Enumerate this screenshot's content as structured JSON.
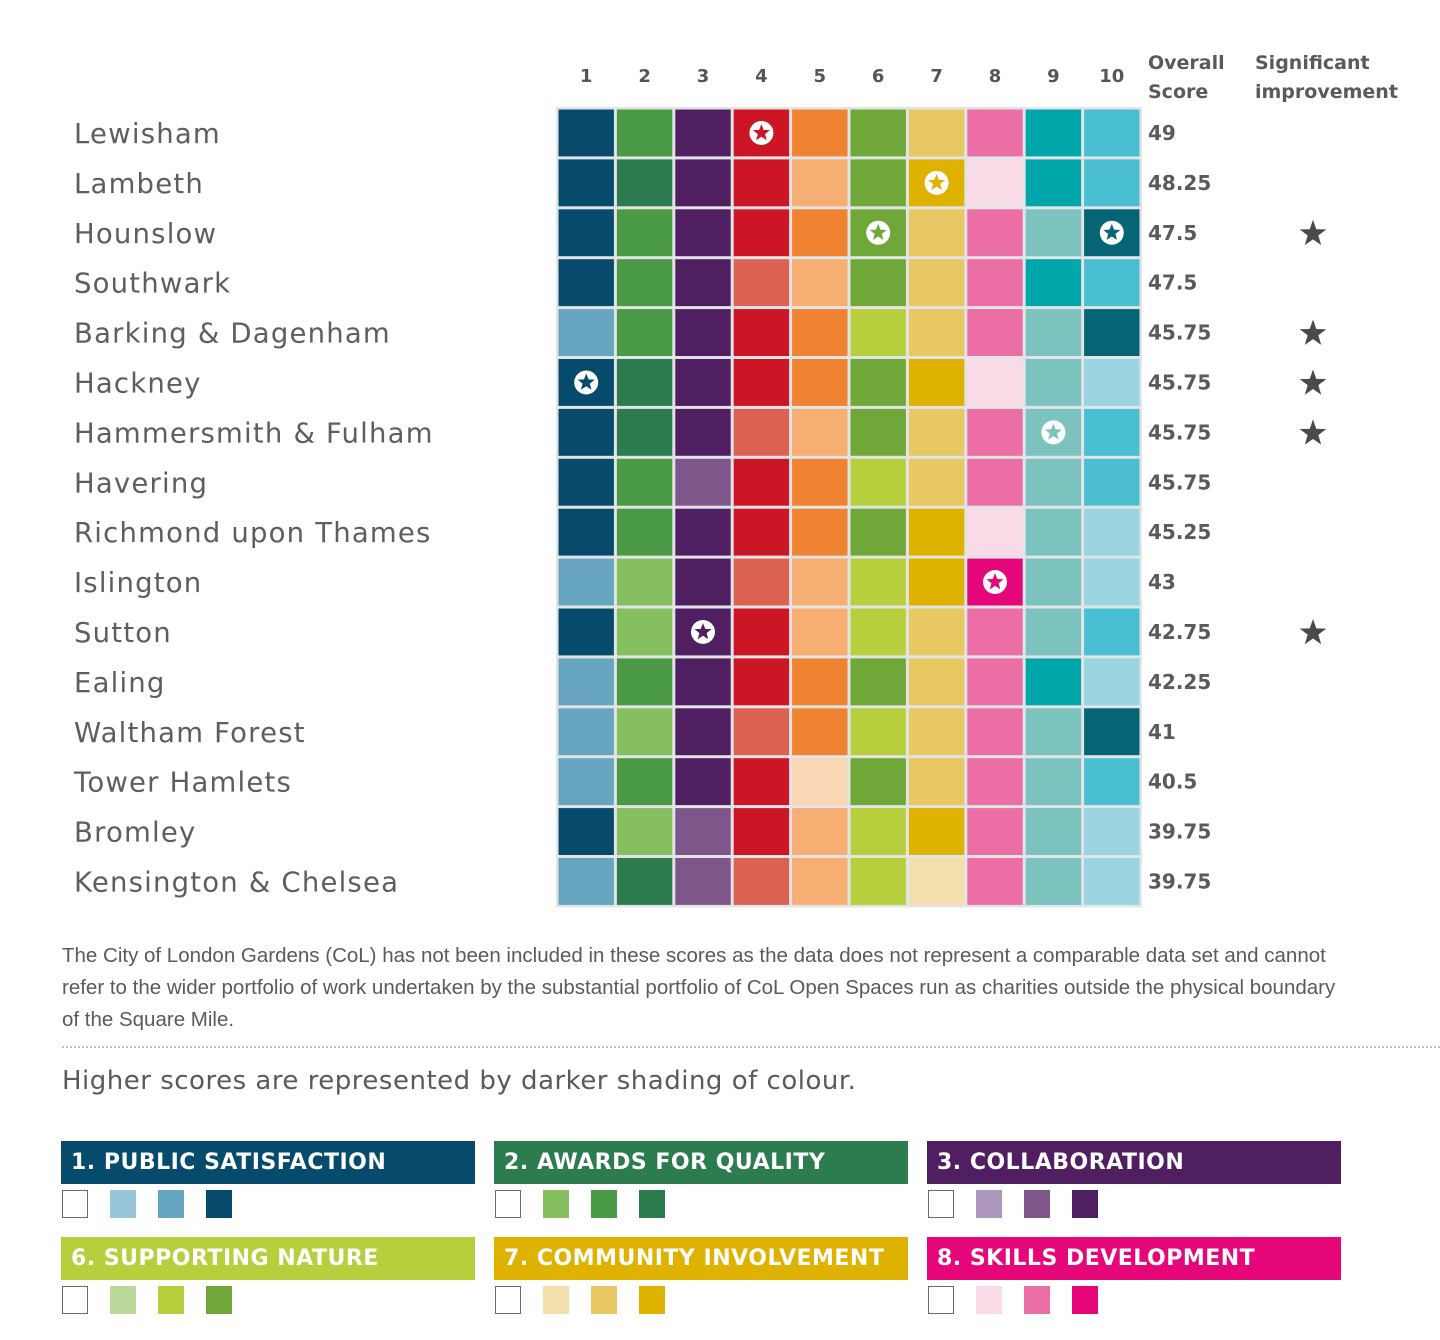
{
  "chart_data": {
    "type": "heatmap",
    "columns": [
      "1",
      "2",
      "3",
      "4",
      "5",
      "6",
      "7",
      "8",
      "9",
      "10"
    ],
    "overall_header": [
      "Overall",
      "Score"
    ],
    "improvement_header": [
      "Significant",
      "improvement"
    ],
    "palettes": [
      [
        "#ffffff",
        "#98c6d8",
        "#68a5c0",
        "#064b6b"
      ],
      [
        "#ffffff",
        "#86bf60",
        "#4a9a45",
        "#2d7c4f"
      ],
      [
        "#ffffff",
        "#ac96bb",
        "#7e568a",
        "#501f62"
      ],
      [
        "#ffffff",
        "#f6c7c0",
        "#dc6352",
        "#cc1625"
      ],
      [
        "#ffffff",
        "#f9d6b4",
        "#f6ae72",
        "#ef8332"
      ],
      [
        "#ffffff",
        "#bcd89b",
        "#b8cf3d",
        "#6fa838"
      ],
      [
        "#ffffff",
        "#f3dfac",
        "#e8c862",
        "#dfb200"
      ],
      [
        "#ffffff",
        "#f8dbe6",
        "#eb6ea4",
        "#e5077a"
      ],
      [
        "#ffffff",
        "#b2dfd9",
        "#7cc3c0",
        "#00a7aa"
      ],
      [
        "#ffffff",
        "#99d4e0",
        "#4bbfd2",
        "#056574"
      ]
    ],
    "rows": [
      {
        "name": "Lewisham",
        "levels": [
          3,
          2,
          3,
          3,
          3,
          3,
          2,
          2,
          3,
          2
        ],
        "award": 4,
        "score": "49",
        "improvement": false
      },
      {
        "name": "Lambeth",
        "levels": [
          3,
          3,
          3,
          3,
          2,
          3,
          3,
          1,
          3,
          2
        ],
        "award": 7,
        "score": "48.25",
        "improvement": false
      },
      {
        "name": "Hounslow",
        "levels": [
          3,
          2,
          3,
          3,
          3,
          3,
          2,
          2,
          2,
          3
        ],
        "award": [
          6,
          10
        ],
        "score": "47.5",
        "improvement": true
      },
      {
        "name": "Southwark",
        "levels": [
          3,
          2,
          3,
          2,
          2,
          3,
          2,
          2,
          3,
          2
        ],
        "award": null,
        "score": "47.5",
        "improvement": false
      },
      {
        "name": "Barking & Dagenham",
        "levels": [
          2,
          2,
          3,
          3,
          3,
          2,
          2,
          2,
          2,
          3
        ],
        "award": null,
        "score": "45.75",
        "improvement": true
      },
      {
        "name": "Hackney",
        "levels": [
          3,
          3,
          3,
          3,
          3,
          3,
          3,
          1,
          2,
          1
        ],
        "award": 1,
        "score": "45.75",
        "improvement": true
      },
      {
        "name": "Hammersmith & Fulham",
        "levels": [
          3,
          3,
          3,
          2,
          2,
          3,
          2,
          2,
          2,
          2
        ],
        "award": 9,
        "score": "45.75",
        "improvement": true
      },
      {
        "name": "Havering",
        "levels": [
          3,
          2,
          2,
          3,
          3,
          2,
          2,
          2,
          2,
          2
        ],
        "award": null,
        "score": "45.75",
        "improvement": false
      },
      {
        "name": "Richmond upon Thames",
        "levels": [
          3,
          2,
          3,
          3,
          3,
          3,
          3,
          1,
          2,
          1
        ],
        "award": null,
        "score": "45.25",
        "improvement": false
      },
      {
        "name": "Islington",
        "levels": [
          2,
          1,
          3,
          2,
          2,
          2,
          3,
          3,
          2,
          1
        ],
        "award": 8,
        "score": "43",
        "improvement": false
      },
      {
        "name": "Sutton",
        "levels": [
          3,
          1,
          3,
          3,
          2,
          2,
          2,
          2,
          2,
          2
        ],
        "award": 3,
        "score": "42.75",
        "improvement": true
      },
      {
        "name": "Ealing",
        "levels": [
          2,
          2,
          3,
          3,
          3,
          3,
          2,
          2,
          3,
          1
        ],
        "award": null,
        "score": "42.25",
        "improvement": false
      },
      {
        "name": "Waltham Forest",
        "levels": [
          2,
          1,
          3,
          2,
          3,
          2,
          2,
          2,
          2,
          3
        ],
        "award": null,
        "score": "41",
        "improvement": false
      },
      {
        "name": "Tower Hamlets",
        "levels": [
          2,
          2,
          3,
          3,
          1,
          3,
          2,
          2,
          2,
          2
        ],
        "award": null,
        "score": "40.5",
        "improvement": false
      },
      {
        "name": "Bromley",
        "levels": [
          3,
          1,
          2,
          3,
          2,
          2,
          3,
          2,
          2,
          1
        ],
        "award": null,
        "score": "39.75",
        "improvement": false
      },
      {
        "name": "Kensington & Chelsea",
        "levels": [
          2,
          3,
          2,
          2,
          2,
          2,
          1,
          2,
          2,
          1
        ],
        "award": null,
        "score": "39.75",
        "improvement": false
      }
    ]
  },
  "note": "The City of London Gardens (CoL) has not been included in these scores as the data does not represent a comparable data set and cannot refer to the wider portfolio of work undertaken by the substantial portfolio of CoL Open Spaces run as charities outside the physical boundary of the Square Mile.",
  "legend_caption": "Higher scores are represented by darker shading of colour.",
  "legend": [
    {
      "title": "1. PUBLIC SATISFACTION",
      "color": "#064b6b",
      "swatches": [
        "#ffffff",
        "#98c6d8",
        "#68a5c0",
        "#064b6b"
      ]
    },
    {
      "title": "2. AWARDS FOR QUALITY",
      "color": "#2d7c4f",
      "swatches": [
        "#ffffff",
        "#86bf60",
        "#4a9a45",
        "#2d7c4f"
      ]
    },
    {
      "title": "3. COLLABORATION",
      "color": "#501f62",
      "swatches": [
        "#ffffff",
        "#ac96bb",
        "#7e568a",
        "#501f62"
      ]
    },
    {
      "title": "6. SUPPORTING NATURE",
      "color": "#b8cf3d",
      "swatches": [
        "#ffffff",
        "#bcd89b",
        "#b8cf3d",
        "#6fa838"
      ]
    },
    {
      "title": "7. COMMUNITY INVOLVEMENT",
      "color": "#dfb200",
      "swatches": [
        "#ffffff",
        "#f3dfac",
        "#e8c862",
        "#dfb200"
      ]
    },
    {
      "title": "8. SKILLS DEVELOPMENT",
      "color": "#e5077a",
      "swatches": [
        "#ffffff",
        "#f8dbe6",
        "#eb6ea4",
        "#e5077a"
      ]
    }
  ]
}
